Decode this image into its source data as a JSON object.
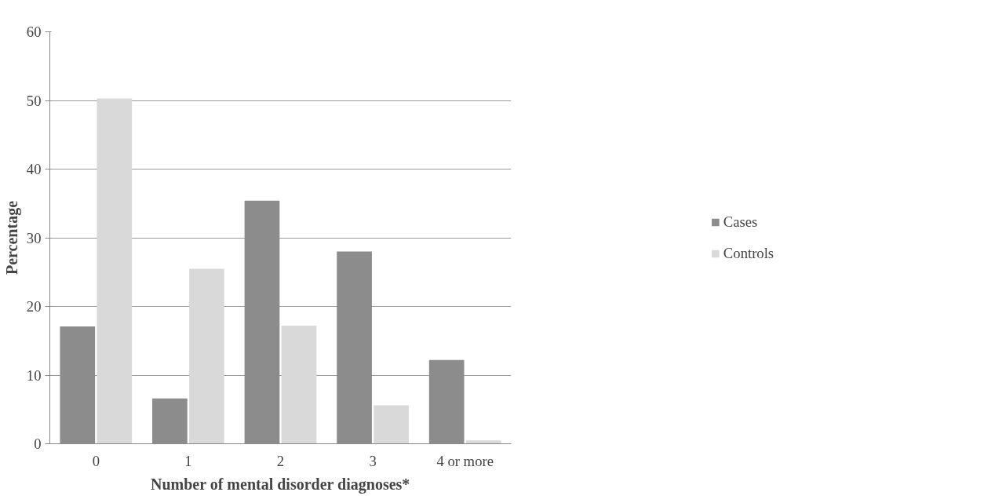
{
  "chart_data": {
    "type": "bar",
    "xlabel": "Number of mental disorder diagnoses*",
    "ylabel": "Percentage",
    "categories": [
      "0",
      "1",
      "2",
      "3",
      "4 or more"
    ],
    "series": [
      {
        "name": "Cases",
        "color": "#8c8c8c",
        "values": [
          17.1,
          6.6,
          35.4,
          28.0,
          12.2
        ]
      },
      {
        "name": "Controls",
        "color": "#d9d9d9",
        "values": [
          50.3,
          25.5,
          17.2,
          5.6,
          0.5
        ]
      }
    ],
    "ylim": [
      0,
      60
    ],
    "yticks": [
      0,
      10,
      20,
      30,
      40,
      50,
      60
    ],
    "grid": "y",
    "legend": "right"
  }
}
